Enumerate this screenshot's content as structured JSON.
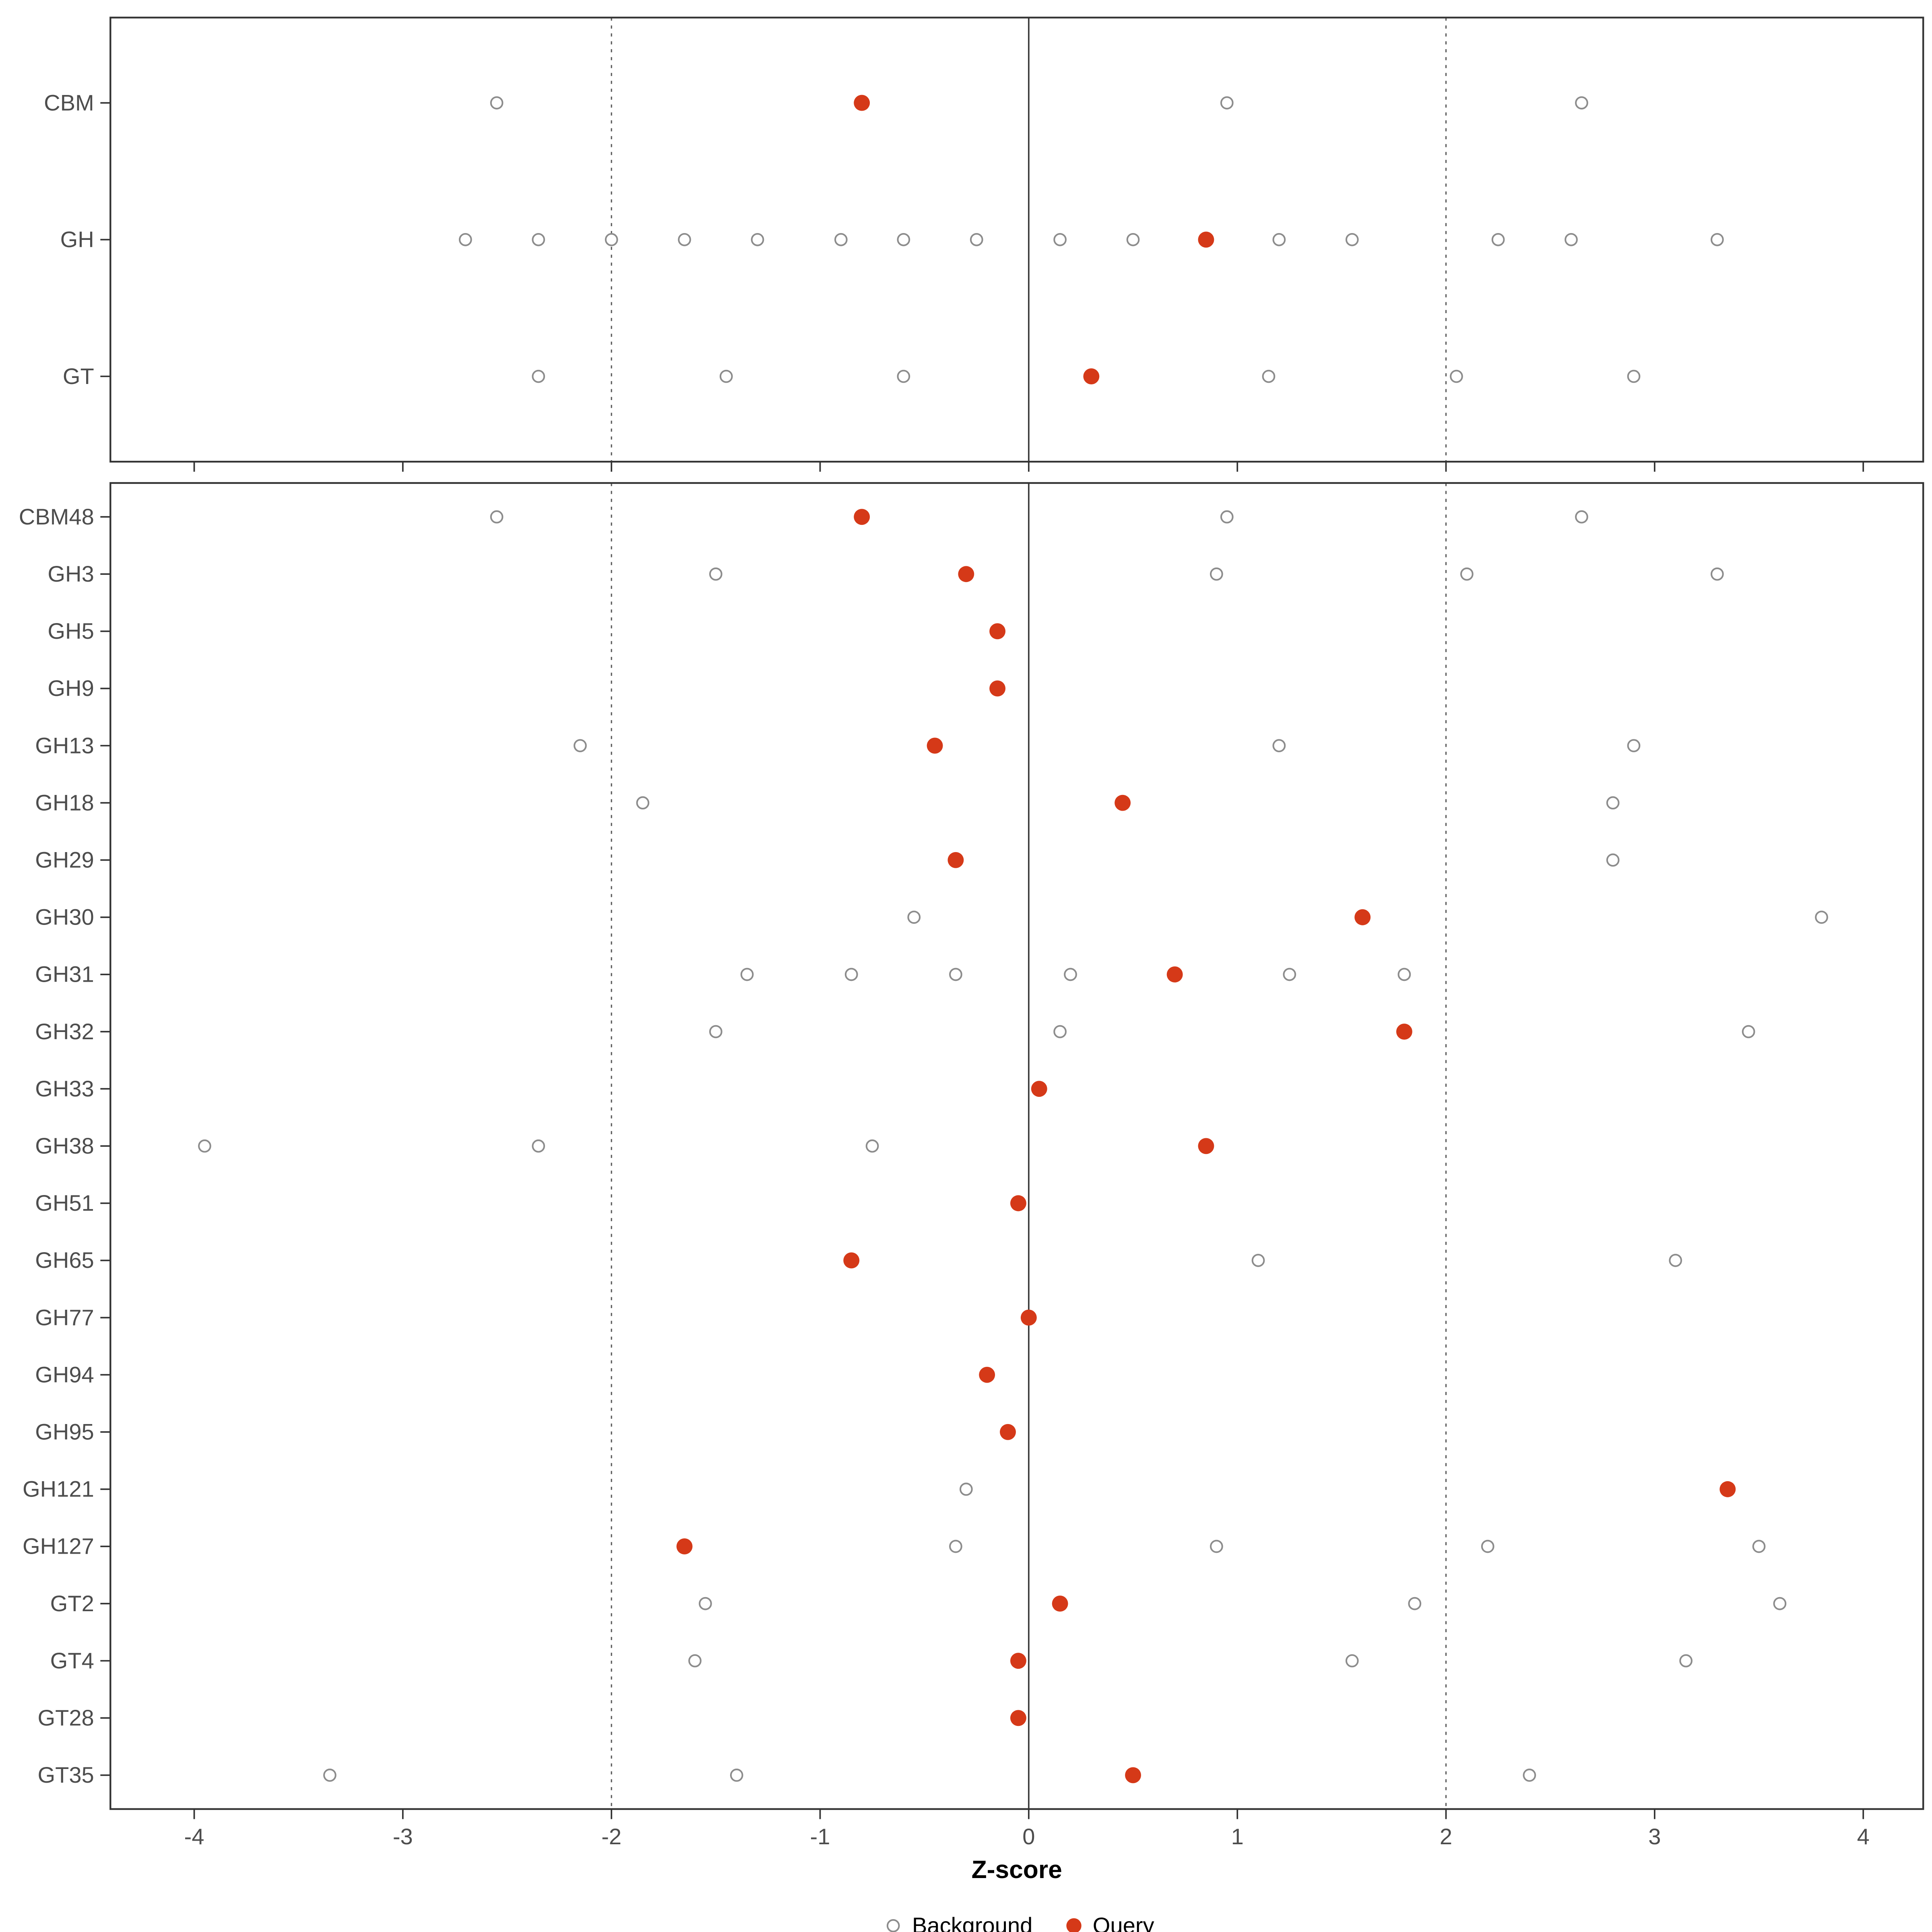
{
  "colors": {
    "query": "#D53918",
    "background_fill": "#ffffff",
    "background_stroke": "#8C8C8C",
    "panel_border": "#333333",
    "ref_dotted": "#595959",
    "ref_solid": "#3C3C3C",
    "axis_text": "#4D4D4D",
    "tick": "#333333",
    "title_text": "#000000"
  },
  "chart_data": {
    "type": "scatter",
    "title": "",
    "xlabel": "Z-score",
    "ylabel": "",
    "x_ticks": [
      -4,
      -3,
      -2,
      -1,
      0,
      1,
      2,
      3,
      4
    ],
    "xlim": [
      -4.35,
      4.3
    ],
    "grid": false,
    "reference_lines": {
      "solid": [
        0
      ],
      "dotted": [
        -2,
        2
      ]
    },
    "legend": [
      {
        "name": "Background",
        "style": "open-circle"
      },
      {
        "name": "Query",
        "style": "filled-circle"
      }
    ],
    "legend_position": "bottom",
    "panels": [
      {
        "name": "class-summary",
        "rows": [
          {
            "label": "CBM",
            "background": [
              -2.55,
              0.95,
              2.65
            ],
            "query": -0.8
          },
          {
            "label": "GH",
            "background": [
              -2.7,
              -2.35,
              -2.0,
              -1.65,
              -1.3,
              -0.9,
              -0.6,
              -0.25,
              0.15,
              0.5,
              1.2,
              1.55,
              2.25,
              2.6,
              3.3
            ],
            "query": 0.85
          },
          {
            "label": "GT",
            "background": [
              -2.35,
              -1.45,
              -0.6,
              1.15,
              2.05,
              2.9
            ],
            "query": 0.3
          }
        ]
      },
      {
        "name": "family-detail",
        "rows": [
          {
            "label": "CBM48",
            "background": [
              -2.55,
              0.95,
              2.65
            ],
            "query": -0.8
          },
          {
            "label": "GH3",
            "background": [
              -1.5,
              0.9,
              2.1,
              3.3
            ],
            "query": -0.3
          },
          {
            "label": "GH5",
            "background": [],
            "query": -0.15
          },
          {
            "label": "GH9",
            "background": [],
            "query": -0.15
          },
          {
            "label": "GH13",
            "background": [
              -2.15,
              1.2,
              2.9
            ],
            "query": -0.45
          },
          {
            "label": "GH18",
            "background": [
              -1.85,
              2.8
            ],
            "query": 0.45
          },
          {
            "label": "GH29",
            "background": [
              2.8
            ],
            "query": -0.35
          },
          {
            "label": "GH30",
            "background": [
              -0.55,
              3.8
            ],
            "query": 1.6
          },
          {
            "label": "GH31",
            "background": [
              -1.35,
              -0.85,
              -0.35,
              0.2,
              1.25,
              1.8
            ],
            "query": 0.7
          },
          {
            "label": "GH32",
            "background": [
              -1.5,
              0.15,
              3.45
            ],
            "query": 1.8
          },
          {
            "label": "GH33",
            "background": [],
            "query": 0.05
          },
          {
            "label": "GH38",
            "background": [
              -3.95,
              -2.35,
              -0.75
            ],
            "query": 0.85
          },
          {
            "label": "GH51",
            "background": [],
            "query": -0.05
          },
          {
            "label": "GH65",
            "background": [
              1.1,
              3.1
            ],
            "query": -0.85
          },
          {
            "label": "GH77",
            "background": [],
            "query": 0.0
          },
          {
            "label": "GH94",
            "background": [],
            "query": -0.2
          },
          {
            "label": "GH95",
            "background": [],
            "query": -0.1
          },
          {
            "label": "GH121",
            "background": [
              -0.3
            ],
            "query": 3.35
          },
          {
            "label": "GH127",
            "background": [
              -0.35,
              0.9,
              2.2,
              3.5
            ],
            "query": -1.65
          },
          {
            "label": "GT2",
            "background": [
              -1.55,
              1.85,
              3.6
            ],
            "query": 0.15
          },
          {
            "label": "GT4",
            "background": [
              -1.6,
              1.55,
              3.15
            ],
            "query": -0.05
          },
          {
            "label": "GT28",
            "background": [],
            "query": -0.05
          },
          {
            "label": "GT35",
            "background": [
              -3.35,
              -1.4,
              2.4
            ],
            "query": 0.5
          }
        ]
      }
    ]
  }
}
